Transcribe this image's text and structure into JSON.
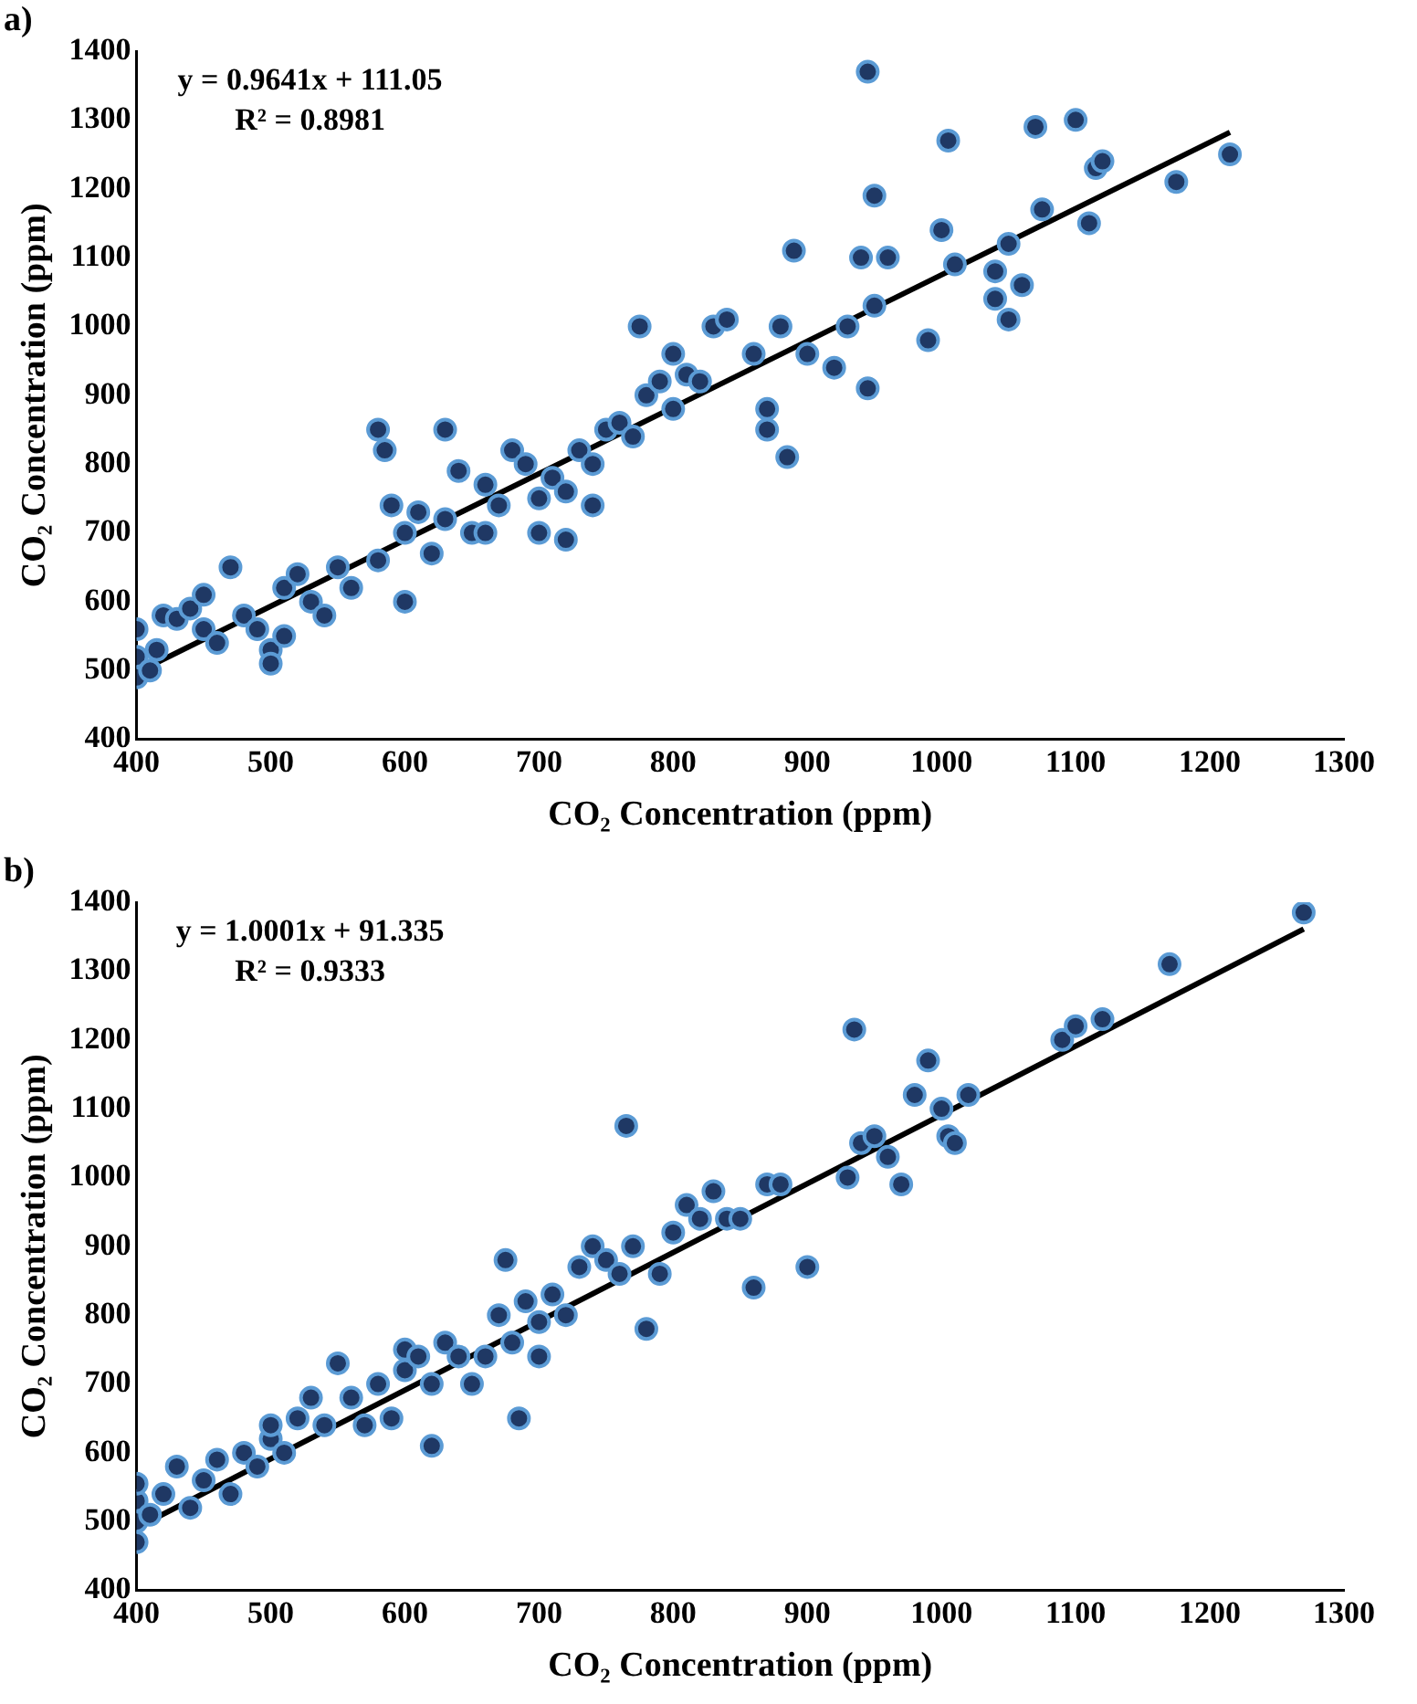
{
  "chart_data": [
    {
      "type": "scatter",
      "xlabel": "CO₂ Concentration (ppm)",
      "ylabel": "CO₂ Concentration (ppm)",
      "annotations": [
        "a)",
        "y = 0.9641x + 111.05",
        "R² = 0.8981"
      ],
      "xlim": [
        400,
        1300
      ],
      "ylim": [
        400,
        1400
      ],
      "xticks": [
        400,
        500,
        600,
        700,
        800,
        900,
        1000,
        1100,
        1200,
        1300
      ],
      "yticks": [
        400,
        500,
        600,
        700,
        800,
        900,
        1000,
        1100,
        1200,
        1300,
        1400
      ],
      "grid": false,
      "legend": false,
      "marker": "circle",
      "series": [
        {
          "type": "scatter",
          "color": "#1f3864",
          "x": [
            400,
            400,
            400,
            410,
            415,
            420,
            430,
            440,
            450,
            450,
            460,
            470,
            480,
            490,
            500,
            500,
            510,
            510,
            520,
            530,
            540,
            550,
            560,
            580,
            580,
            585,
            590,
            600,
            600,
            610,
            620,
            630,
            630,
            640,
            650,
            660,
            660,
            670,
            680,
            690,
            700,
            700,
            710,
            720,
            720,
            730,
            740,
            740,
            750,
            760,
            770,
            775,
            780,
            790,
            800,
            800,
            810,
            820,
            830,
            840,
            860,
            870,
            870,
            880,
            885,
            890,
            900,
            920,
            930,
            940,
            945,
            945,
            950,
            950,
            960,
            990,
            1000,
            1005,
            1010,
            1040,
            1040,
            1050,
            1050,
            1060,
            1070,
            1075,
            1100,
            1110,
            1115,
            1120,
            1175,
            1215
          ],
          "values": [
            560,
            520,
            490,
            500,
            530,
            580,
            575,
            590,
            610,
            560,
            540,
            650,
            580,
            560,
            530,
            510,
            550,
            620,
            640,
            600,
            580,
            650,
            620,
            660,
            850,
            820,
            740,
            700,
            600,
            730,
            670,
            720,
            850,
            790,
            700,
            700,
            770,
            740,
            820,
            800,
            750,
            700,
            780,
            760,
            690,
            820,
            800,
            740,
            850,
            860,
            840,
            1000,
            900,
            920,
            960,
            880,
            930,
            920,
            1000,
            1010,
            960,
            880,
            850,
            1000,
            810,
            1110,
            960,
            940,
            1000,
            1100,
            1370,
            910,
            1190,
            1030,
            1100,
            980,
            1140,
            1270,
            1090,
            1080,
            1040,
            1010,
            1120,
            1060,
            1290,
            1170,
            1300,
            1150,
            1230,
            1240,
            1210,
            1250
          ]
        },
        {
          "type": "line",
          "color": "#000000",
          "x": [
            400,
            1215
          ],
          "values": [
            497,
            1282
          ],
          "marker": "none"
        }
      ]
    },
    {
      "type": "scatter",
      "xlabel": "CO₂ Concentration (ppm)",
      "ylabel": "CO₂ Concentration (ppm)",
      "annotations": [
        "b)",
        "y = 1.0001x + 91.335",
        "R² = 0.9333"
      ],
      "xlim": [
        400,
        1300
      ],
      "ylim": [
        400,
        1400
      ],
      "xticks": [
        400,
        500,
        600,
        700,
        800,
        900,
        1000,
        1100,
        1200,
        1300
      ],
      "yticks": [
        400,
        500,
        600,
        700,
        800,
        900,
        1000,
        1100,
        1200,
        1300,
        1400
      ],
      "grid": false,
      "legend": false,
      "marker": "circle",
      "series": [
        {
          "type": "scatter",
          "color": "#1f3864",
          "x": [
            400,
            400,
            400,
            400,
            410,
            420,
            430,
            440,
            450,
            460,
            470,
            480,
            490,
            500,
            500,
            510,
            520,
            530,
            540,
            550,
            560,
            570,
            580,
            590,
            600,
            600,
            610,
            620,
            620,
            630,
            640,
            650,
            660,
            670,
            675,
            680,
            685,
            690,
            700,
            700,
            710,
            720,
            730,
            740,
            750,
            760,
            765,
            770,
            780,
            790,
            800,
            810,
            820,
            830,
            840,
            850,
            860,
            870,
            880,
            900,
            930,
            935,
            940,
            950,
            960,
            970,
            980,
            990,
            1000,
            1005,
            1010,
            1020,
            1090,
            1100,
            1120,
            1170,
            1270
          ],
          "values": [
            470,
            500,
            530,
            555,
            510,
            540,
            580,
            520,
            560,
            590,
            540,
            600,
            580,
            620,
            640,
            600,
            650,
            680,
            640,
            730,
            680,
            640,
            700,
            650,
            720,
            750,
            740,
            700,
            610,
            760,
            740,
            700,
            740,
            800,
            880,
            760,
            650,
            820,
            790,
            740,
            830,
            800,
            870,
            900,
            880,
            860,
            1075,
            900,
            780,
            860,
            920,
            960,
            940,
            980,
            940,
            940,
            840,
            990,
            990,
            870,
            1000,
            1215,
            1050,
            1060,
            1030,
            990,
            1120,
            1170,
            1100,
            1060,
            1050,
            1120,
            1200,
            1220,
            1230,
            1310,
            1385
          ]
        },
        {
          "type": "line",
          "color": "#000000",
          "x": [
            400,
            1270
          ],
          "values": [
            491,
            1361
          ],
          "marker": "none"
        }
      ]
    }
  ]
}
